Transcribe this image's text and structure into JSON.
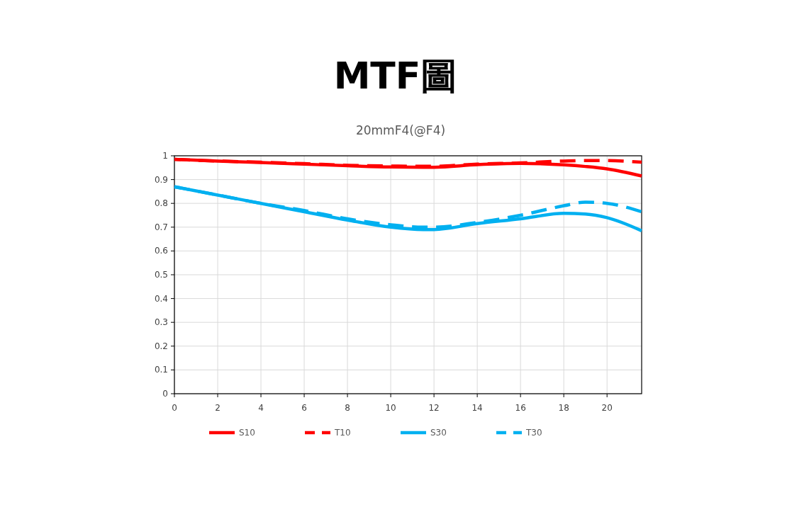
{
  "chart_data": {
    "type": "line",
    "title": "MTF圖",
    "subtitle": "20mmF4(@F4)",
    "x": [
      0,
      2,
      4,
      6,
      8,
      10,
      11.5,
      12,
      14,
      16,
      18,
      19,
      20,
      21.6
    ],
    "series": [
      {
        "name": "S10",
        "color": "#ff0000",
        "line_style": "solid",
        "values": [
          0.985,
          0.978,
          0.972,
          0.965,
          0.958,
          0.953,
          0.952,
          0.952,
          0.963,
          0.968,
          0.962,
          0.955,
          0.945,
          0.915
        ]
      },
      {
        "name": "T10",
        "color": "#ff0000",
        "line_style": "dashed",
        "values": [
          0.985,
          0.978,
          0.973,
          0.967,
          0.96,
          0.957,
          0.956,
          0.956,
          0.965,
          0.97,
          0.978,
          0.98,
          0.98,
          0.973
        ]
      },
      {
        "name": "S30",
        "color": "#00b0f0",
        "line_style": "solid",
        "values": [
          0.87,
          0.835,
          0.8,
          0.765,
          0.73,
          0.7,
          0.69,
          0.69,
          0.715,
          0.735,
          0.758,
          0.755,
          0.74,
          0.685
        ]
      },
      {
        "name": "T30",
        "color": "#00b0f0",
        "line_style": "dashed",
        "values": [
          0.87,
          0.835,
          0.8,
          0.77,
          0.735,
          0.71,
          0.7,
          0.7,
          0.72,
          0.75,
          0.79,
          0.805,
          0.8,
          0.765
        ]
      }
    ],
    "xlim": [
      0,
      21.6
    ],
    "xticks": [
      0,
      2,
      4,
      6,
      8,
      10,
      12,
      14,
      16,
      18,
      20
    ],
    "ylim": [
      0,
      1
    ],
    "yticks": [
      0,
      0.1,
      0.2,
      0.3,
      0.4,
      0.5,
      0.6,
      0.7,
      0.8,
      0.9,
      1
    ],
    "grid": true,
    "legend": "bottom"
  }
}
